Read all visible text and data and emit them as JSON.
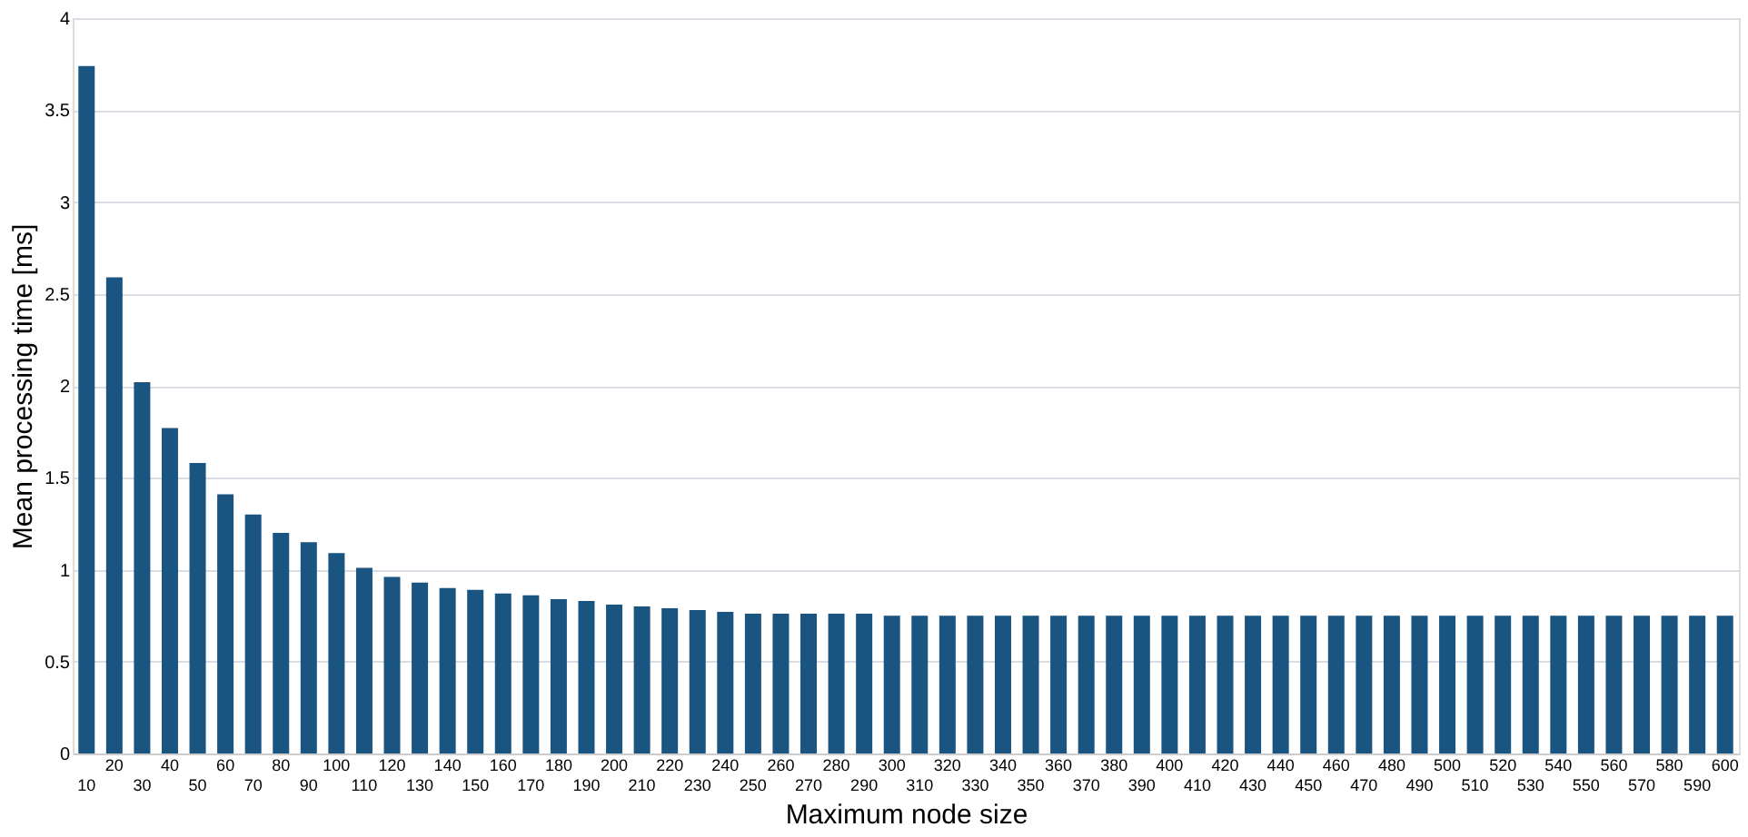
{
  "chart_data": {
    "type": "bar",
    "xlabel": "Maximum node size",
    "ylabel": "Mean processing time [ms]",
    "categories": [
      "10",
      "20",
      "30",
      "40",
      "50",
      "60",
      "70",
      "80",
      "90",
      "100",
      "110",
      "120",
      "130",
      "140",
      "150",
      "160",
      "170",
      "180",
      "190",
      "200",
      "210",
      "220",
      "230",
      "240",
      "250",
      "260",
      "270",
      "280",
      "290",
      "300",
      "310",
      "320",
      "330",
      "340",
      "350",
      "360",
      "370",
      "380",
      "390",
      "400",
      "410",
      "420",
      "430",
      "440",
      "450",
      "460",
      "470",
      "480",
      "490",
      "500",
      "510",
      "520",
      "530",
      "540",
      "550",
      "560",
      "570",
      "580",
      "590",
      "600"
    ],
    "values": [
      3.74,
      2.59,
      2.02,
      1.77,
      1.58,
      1.41,
      1.3,
      1.2,
      1.15,
      1.09,
      1.01,
      0.96,
      0.93,
      0.9,
      0.89,
      0.87,
      0.86,
      0.84,
      0.83,
      0.81,
      0.8,
      0.79,
      0.78,
      0.77,
      0.76,
      0.76,
      0.76,
      0.76,
      0.76,
      0.75,
      0.75,
      0.75,
      0.75,
      0.75,
      0.75,
      0.75,
      0.75,
      0.75,
      0.75,
      0.75,
      0.75,
      0.75,
      0.75,
      0.75,
      0.75,
      0.75,
      0.75,
      0.75,
      0.75,
      0.75,
      0.75,
      0.75,
      0.75,
      0.75,
      0.75,
      0.75,
      0.75,
      0.75,
      0.75,
      0.75
    ],
    "color": "#1a5480",
    "ylim": [
      0,
      4
    ],
    "yticks": [
      0,
      0.5,
      1,
      1.5,
      2,
      2.5,
      3,
      3.5,
      4
    ],
    "grid": "y"
  }
}
